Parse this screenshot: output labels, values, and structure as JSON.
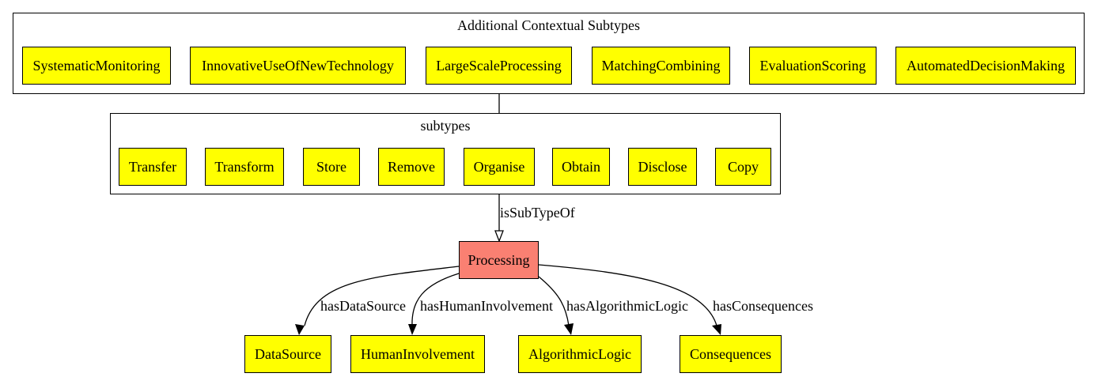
{
  "clusters": {
    "contextual": {
      "title": "Additional Contextual Subtypes",
      "nodes": [
        "SystematicMonitoring",
        "InnovativeUseOfNewTechnology",
        "LargeScaleProcessing",
        "MatchingCombining",
        "EvaluationScoring",
        "AutomatedDecisionMaking"
      ]
    },
    "subtypes": {
      "title": "subtypes",
      "nodes": [
        "Transfer",
        "Transform",
        "Store",
        "Remove",
        "Organise",
        "Obtain",
        "Disclose",
        "Copy"
      ]
    }
  },
  "central": {
    "label": "Processing",
    "color": "#fa8072"
  },
  "relations": {
    "isSubTypeOf": "isSubTypeOf",
    "hasDataSource": "hasDataSource",
    "hasHumanInvolvement": "hasHumanInvolvement",
    "hasAlgorithmicLogic": "hasAlgorithmicLogic",
    "hasConsequences": "hasConsequences"
  },
  "targets": {
    "datasource": "DataSource",
    "humaninvolvement": "HumanInvolvement",
    "algorithmiclogic": "AlgorithmicLogic",
    "consequences": "Consequences"
  },
  "colors": {
    "node_fill": "#ffff00",
    "central_fill": "#fa8072",
    "stroke": "#000000"
  }
}
